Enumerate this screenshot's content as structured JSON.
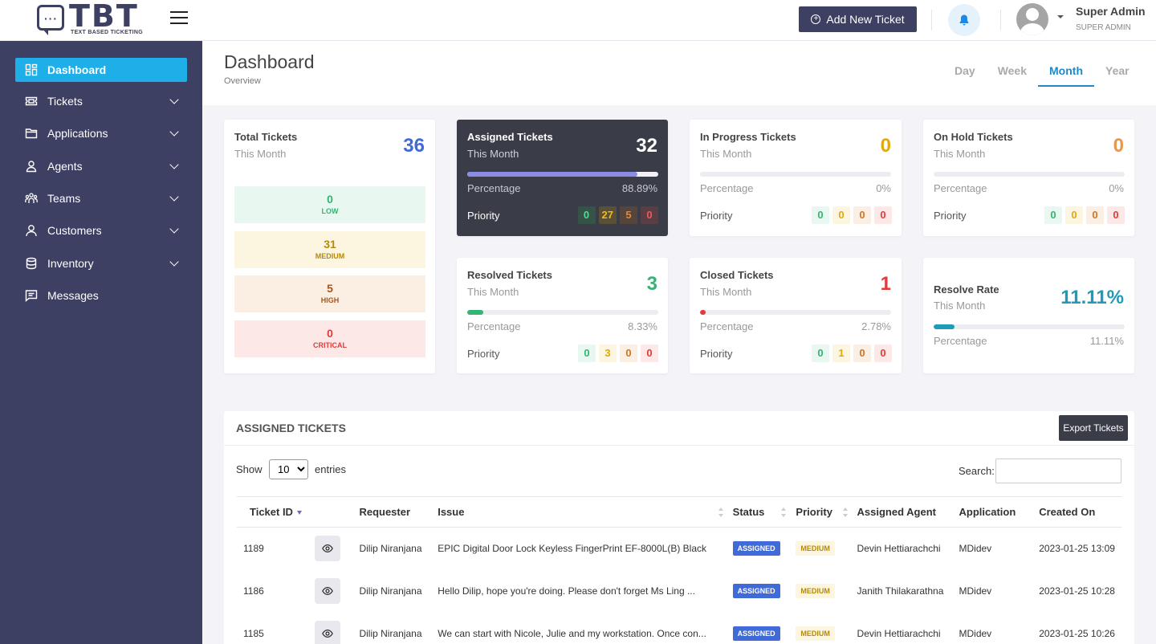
{
  "header": {
    "logo_text": "TBT",
    "logo_sub": "TEXT BASED TICKETING",
    "add_ticket_label": "Add New Ticket",
    "user_name": "Super Admin",
    "user_role": "SUPER ADMIN"
  },
  "sidebar": {
    "items": [
      {
        "label": "Dashboard",
        "icon": "grid-icon",
        "active": true
      },
      {
        "label": "Tickets",
        "icon": "ticket-icon"
      },
      {
        "label": "Applications",
        "icon": "folder-icon"
      },
      {
        "label": "Agents",
        "icon": "user-icon"
      },
      {
        "label": "Teams",
        "icon": "team-icon"
      },
      {
        "label": "Customers",
        "icon": "customer-icon"
      },
      {
        "label": "Inventory",
        "icon": "database-icon"
      },
      {
        "label": "Messages",
        "icon": "message-icon"
      }
    ]
  },
  "page": {
    "title": "Dashboard",
    "subtitle": "Overview",
    "periods": [
      "Day",
      "Week",
      "Month",
      "Year"
    ],
    "active_period": "Month"
  },
  "cards": {
    "total": {
      "title": "Total Tickets",
      "sub": "This Month",
      "value": "36",
      "breakdown": [
        {
          "num": "0",
          "label": "LOW"
        },
        {
          "num": "31",
          "label": "MEDIUM"
        },
        {
          "num": "5",
          "label": "HIGH"
        },
        {
          "num": "0",
          "label": "CRITICAL"
        }
      ]
    },
    "assigned": {
      "title": "Assigned Tickets",
      "sub": "This Month",
      "value": "32",
      "pct_label": "Percentage",
      "pct": "88.89%",
      "pct_fraction": 0.8889,
      "prio_label": "Priority",
      "prio": [
        "0",
        "27",
        "5",
        "0"
      ]
    },
    "inprogress": {
      "title": "In Progress Tickets",
      "sub": "This Month",
      "value": "0",
      "pct_label": "Percentage",
      "pct": "0%",
      "pct_fraction": 0,
      "prio_label": "Priority",
      "prio": [
        "0",
        "0",
        "0",
        "0"
      ]
    },
    "onhold": {
      "title": "On Hold Tickets",
      "sub": "This Month",
      "value": "0",
      "pct_label": "Percentage",
      "pct": "0%",
      "pct_fraction": 0,
      "prio_label": "Priority",
      "prio": [
        "0",
        "0",
        "0",
        "0"
      ]
    },
    "resolved": {
      "title": "Resolved Tickets",
      "sub": "This Month",
      "value": "3",
      "pct_label": "Percentage",
      "pct": "8.33%",
      "pct_fraction": 0.0833,
      "prio_label": "Priority",
      "prio": [
        "0",
        "3",
        "0",
        "0"
      ]
    },
    "closed": {
      "title": "Closed Tickets",
      "sub": "This Month",
      "value": "1",
      "pct_label": "Percentage",
      "pct": "2.78%",
      "pct_fraction": 0.0278,
      "prio_label": "Priority",
      "prio": [
        "0",
        "1",
        "0",
        "0"
      ]
    },
    "resolve_rate": {
      "title": "Resolve Rate",
      "sub": "This Month",
      "value": "11.11%",
      "pct_label": "Percentage",
      "pct": "11.11%",
      "pct_fraction": 0.1111
    }
  },
  "colors": {
    "total": "#3f6ad8",
    "assigned_fill": "#8c8ce6",
    "inprogress": "#e3a80b",
    "onhold": "#e8974e",
    "resolved": "#35b374",
    "closed": "#e23a3a",
    "resolve_rate": "#1e9bb8",
    "low_bg": "#e8f7ef",
    "low_fg": "#35b374",
    "medium_bg": "#fcf5df",
    "medium_fg": "#b78a0a",
    "high_bg": "#fbeee2",
    "high_fg": "#a8561a",
    "critical_bg": "#fde8e8",
    "critical_fg": "#e23a3a"
  },
  "table": {
    "title": "ASSIGNED TICKETS",
    "export_label": "Export Tickets",
    "show_label": "Show",
    "entries_value": "10",
    "entries_label": "entries",
    "search_label": "Search:",
    "columns": [
      "Ticket ID",
      "",
      "Requester",
      "Issue",
      "Status",
      "Priority",
      "Assigned Agent",
      "Application",
      "Created On"
    ],
    "rows": [
      {
        "id": "1189",
        "requester": "Dilip Niranjana",
        "issue": "EPIC Digital Door Lock Keyless FingerPrint EF-8000L(B) Black",
        "status": "ASSIGNED",
        "priority": "MEDIUM",
        "agent": "Devin Hettiarachchi",
        "app": "MDidev",
        "created": "2023-01-25 13:09"
      },
      {
        "id": "1186",
        "requester": "Dilip Niranjana",
        "issue": "Hello Dilip, hope you're doing. Please don't forget Ms Ling ...",
        "status": "ASSIGNED",
        "priority": "MEDIUM",
        "agent": "Janith Thilakarathna",
        "app": "MDidev",
        "created": "2023-01-25 10:28"
      },
      {
        "id": "1185",
        "requester": "Dilip Niranjana",
        "issue": "We can start with Nicole, Julie and my workstation. Once con...",
        "status": "ASSIGNED",
        "priority": "MEDIUM",
        "agent": "Devin Hettiarachchi",
        "app": "MDidev",
        "created": "2023-01-25 10:26"
      }
    ]
  }
}
